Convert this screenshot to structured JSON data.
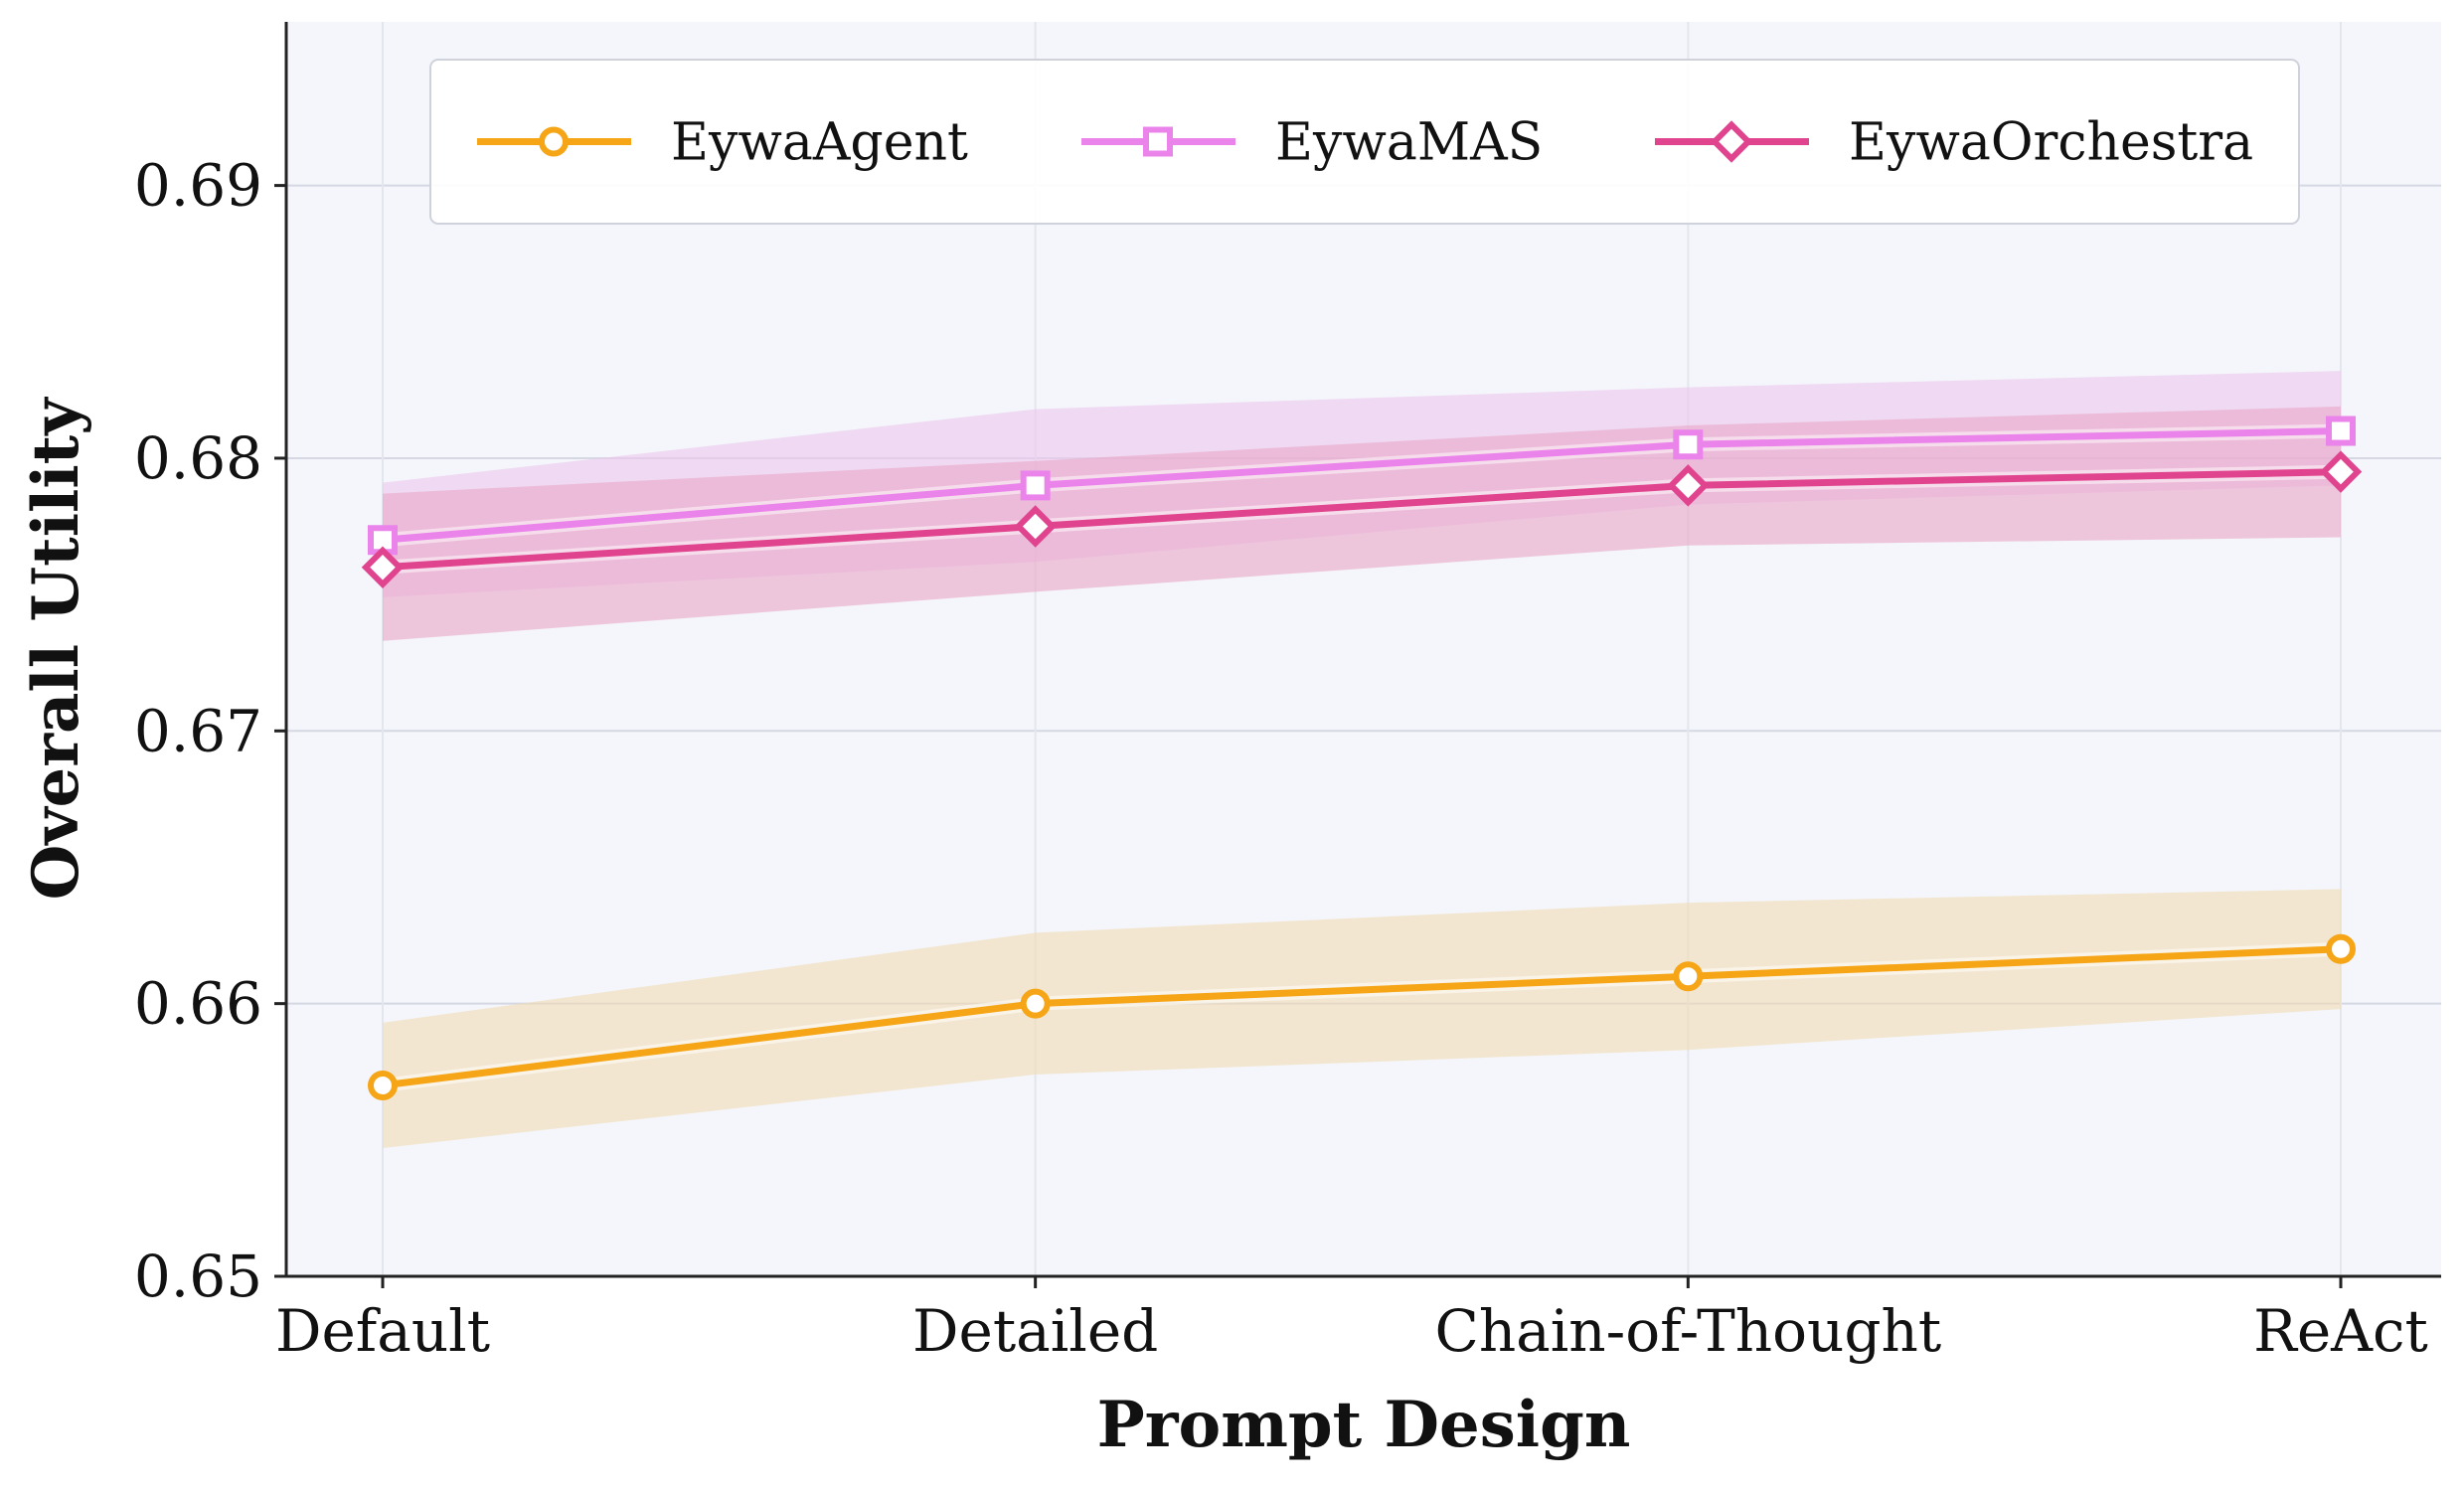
{
  "chart_data": {
    "type": "line",
    "title": "",
    "xlabel": "Prompt Design",
    "ylabel": "Overall Utility",
    "categories": [
      "Default",
      "Detailed",
      "Chain-of-Thought",
      "ReAct"
    ],
    "ylim": [
      0.65,
      0.696
    ],
    "yticks": [
      "0.65",
      "0.66",
      "0.67",
      "0.68",
      "0.69"
    ],
    "ytick_values": [
      0.65,
      0.66,
      0.67,
      0.68,
      0.69
    ],
    "grid": true,
    "legend_position": "top",
    "series": [
      {
        "name": "EywaAgent",
        "values": [
          0.657,
          0.66,
          0.661,
          0.662
        ],
        "lower": [
          0.6547,
          0.6574,
          0.6583,
          0.6598
        ],
        "upper": [
          0.6593,
          0.6626,
          0.6637,
          0.6642
        ],
        "color": "#f5a516",
        "band_color": "#f2dcb4",
        "marker": "circle"
      },
      {
        "name": "EywaMAS",
        "values": [
          0.677,
          0.679,
          0.6805,
          0.681
        ],
        "lower": [
          0.6749,
          0.6762,
          0.6783,
          0.679
        ],
        "upper": [
          0.6791,
          0.6818,
          0.6826,
          0.6832
        ],
        "color": "#ea84ea",
        "band_color": "#ecc6ec",
        "marker": "square"
      },
      {
        "name": "EywaOrchestra",
        "values": [
          0.676,
          0.6775,
          0.679,
          0.6795
        ],
        "lower": [
          0.6733,
          0.6751,
          0.6768,
          0.6771
        ],
        "upper": [
          0.6787,
          0.6799,
          0.6812,
          0.6819
        ],
        "color": "#e1448f",
        "band_color": "#e9a7c8",
        "marker": "diamond"
      }
    ]
  }
}
